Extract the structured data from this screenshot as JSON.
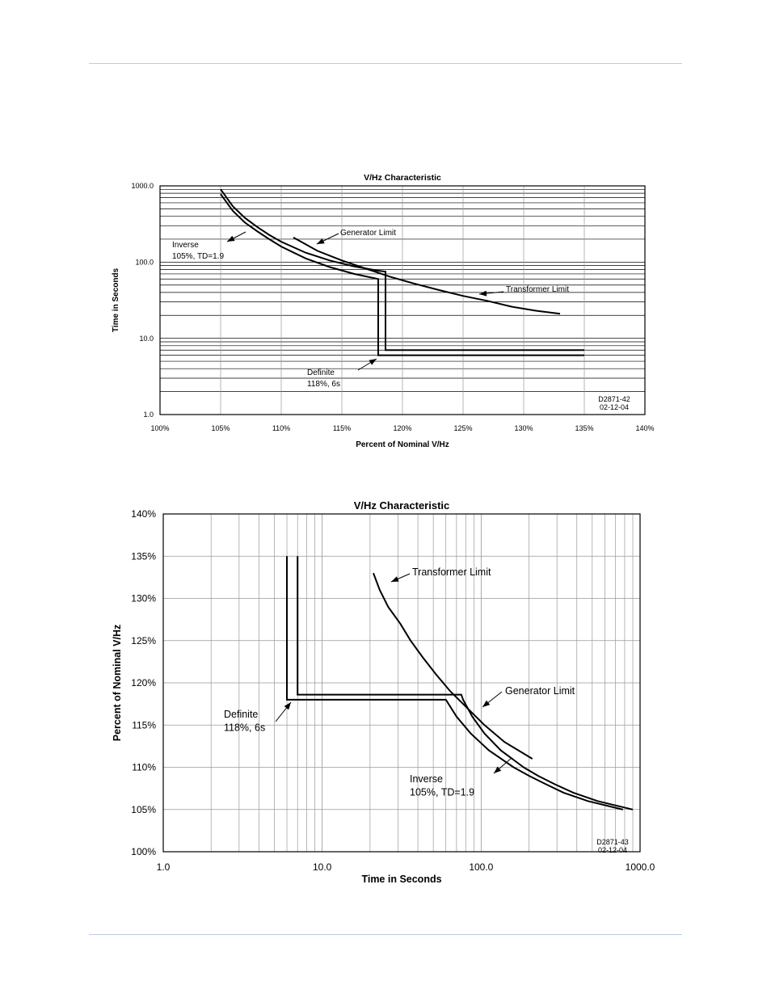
{
  "colors": {
    "rule": "#b9cce4",
    "ink": "#000000",
    "grid_light": "#999999"
  },
  "chart_data": [
    {
      "type": "line",
      "title": "V/Hz Characteristic",
      "xlabel": "Percent of Nominal V/Hz",
      "ylabel": "Time in Seconds",
      "xscale": "linear",
      "yscale": "log",
      "xlim": [
        100,
        140
      ],
      "ylim": [
        1,
        1000
      ],
      "xtick_values": [
        100,
        105,
        110,
        115,
        120,
        125,
        130,
        135,
        140
      ],
      "xtick_labels": [
        "100%",
        "105%",
        "110%",
        "115%",
        "120%",
        "125%",
        "130%",
        "135%",
        "140%"
      ],
      "ytick_values": [
        1,
        10,
        100,
        1000
      ],
      "ytick_labels": [
        "1.0",
        "10.0",
        "100.0",
        "1000.0"
      ],
      "series": [
        {
          "name": "Inverse / Definite",
          "points": [
            [
              105,
              780
            ],
            [
              106,
              470
            ],
            [
              107,
              330
            ],
            [
              108,
              255
            ],
            [
              109,
              200
            ],
            [
              110,
              160
            ],
            [
              112,
              112
            ],
            [
              114,
              86
            ],
            [
              116,
              70
            ],
            [
              118,
              60
            ],
            [
              118,
              6
            ],
            [
              135,
              6
            ]
          ]
        },
        {
          "name": "Generator Limit / Definite",
          "points": [
            [
              105,
              900
            ],
            [
              106,
              540
            ],
            [
              107,
              380
            ],
            [
              108,
              290
            ],
            [
              109,
              228
            ],
            [
              110,
              185
            ],
            [
              112,
              133
            ],
            [
              114,
              105
            ],
            [
              116,
              88
            ],
            [
              118,
              77
            ],
            [
              118.6,
              75
            ],
            [
              118.6,
              7
            ],
            [
              135,
              7
            ]
          ]
        },
        {
          "name": "Transformer Limit",
          "points": [
            [
              111,
              210
            ],
            [
              113,
              140
            ],
            [
              115,
              105
            ],
            [
              117,
              82
            ],
            [
              119,
              64
            ],
            [
              121,
              52
            ],
            [
              123,
              43
            ],
            [
              125,
              36
            ],
            [
              127,
              31
            ],
            [
              129,
              26
            ],
            [
              131,
              23
            ],
            [
              133,
              21
            ]
          ]
        }
      ],
      "annotations": [
        {
          "id": "gen",
          "lines": [
            "Generator Limit"
          ]
        },
        {
          "id": "inv",
          "lines": [
            "Inverse",
            "105%, TD=1.9"
          ]
        },
        {
          "id": "trans",
          "lines": [
            "Transformer Limit"
          ]
        },
        {
          "id": "def",
          "lines": [
            "Definite",
            "118%, 6s"
          ]
        }
      ],
      "figure_code": [
        "D2871-42",
        "02-12-04"
      ]
    },
    {
      "type": "line",
      "title": "V/Hz Characteristic",
      "xlabel": "Time in Seconds",
      "ylabel": "Percent of Nominal V/Hz",
      "xscale": "log",
      "yscale": "linear",
      "xlim": [
        1,
        1000
      ],
      "ylim": [
        100,
        140
      ],
      "xtick_values": [
        1,
        10,
        100,
        1000
      ],
      "xtick_labels": [
        "1.0",
        "10.0",
        "100.0",
        "1000.0"
      ],
      "ytick_values": [
        100,
        105,
        110,
        115,
        120,
        125,
        130,
        135,
        140
      ],
      "ytick_labels": [
        "100%",
        "105%",
        "110%",
        "115%",
        "120%",
        "125%",
        "130%",
        "135%",
        "140%"
      ],
      "series": [
        {
          "name": "Definite / Inverse",
          "points": [
            [
              6,
              135
            ],
            [
              6,
              118
            ],
            [
              60,
              118
            ],
            [
              70,
              116
            ],
            [
              86,
              114
            ],
            [
              112,
              112
            ],
            [
              160,
              110
            ],
            [
              200,
              109
            ],
            [
              255,
              108
            ],
            [
              330,
              107
            ],
            [
              470,
              106
            ],
            [
              780,
              105
            ]
          ]
        },
        {
          "name": "Definite / Generator Limit",
          "points": [
            [
              7,
              135
            ],
            [
              7,
              118.6
            ],
            [
              75,
              118.6
            ],
            [
              77,
              118
            ],
            [
              88,
              116
            ],
            [
              105,
              114
            ],
            [
              133,
              112
            ],
            [
              185,
              110
            ],
            [
              228,
              109
            ],
            [
              290,
              108
            ],
            [
              380,
              107
            ],
            [
              540,
              106
            ],
            [
              900,
              105
            ]
          ]
        },
        {
          "name": "Transformer Limit",
          "points": [
            [
              21,
              133
            ],
            [
              23,
              131
            ],
            [
              26,
              129
            ],
            [
              31,
              127
            ],
            [
              36,
              125
            ],
            [
              43,
              123
            ],
            [
              52,
              121
            ],
            [
              64,
              119
            ],
            [
              82,
              117
            ],
            [
              105,
              115
            ],
            [
              140,
              113
            ],
            [
              210,
              111
            ]
          ]
        }
      ],
      "annotations": [
        {
          "id": "trans",
          "lines": [
            "Transformer Limit"
          ]
        },
        {
          "id": "gen",
          "lines": [
            "Generator Limit"
          ]
        },
        {
          "id": "def",
          "lines": [
            "Definite",
            "118%, 6s"
          ]
        },
        {
          "id": "inv",
          "lines": [
            "Inverse",
            "105%, TD=1.9"
          ]
        }
      ],
      "figure_code": [
        "D2871-43",
        "02-12-04"
      ]
    }
  ]
}
